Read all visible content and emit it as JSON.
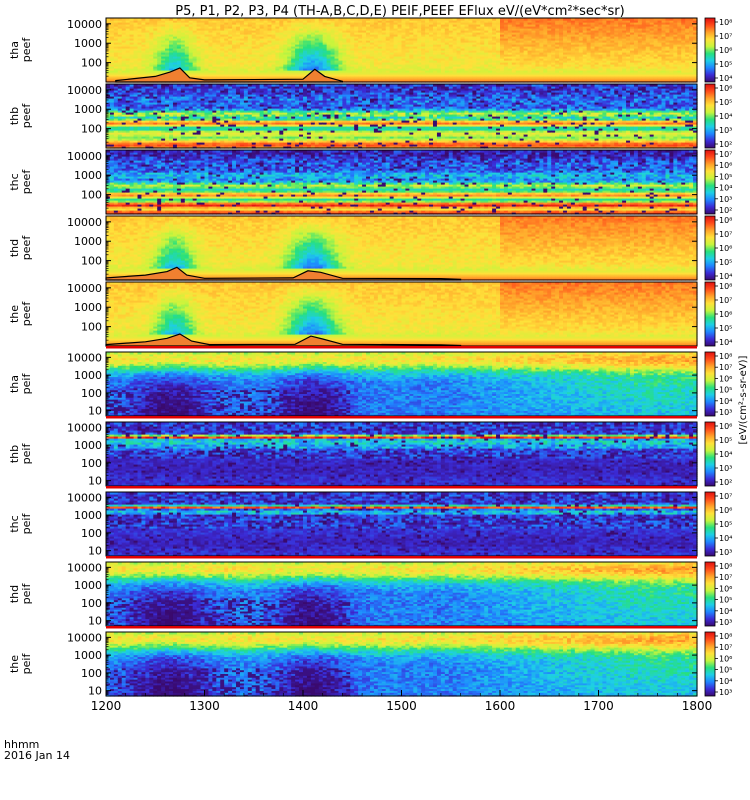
{
  "chart_data": {
    "type": "heatmap",
    "title": "P5, P1, P2, P3, P4 (TH-A,B,C,D,E) PEIF,PEEF EFlux eV/(eV*cm²*sec*sr)",
    "xlabel": "hhmm",
    "date_label": "2016 Jan 14",
    "x_range": [
      1200,
      1800
    ],
    "x_ticks": [
      "1200",
      "1300",
      "1400",
      "1500",
      "1600",
      "1700",
      "1800"
    ],
    "y_scale": "log",
    "colormap": [
      "#3a0a6e",
      "#3b2bd6",
      "#1f86ff",
      "#1ecfe6",
      "#28e07c",
      "#c8f53c",
      "#ffe13a",
      "#ffa12a",
      "#ff4a1a",
      "#e01010"
    ],
    "panels": [
      {
        "id": "tha-peef",
        "label": [
          "tha",
          "peef"
        ],
        "yticks": [
          "10000",
          "1000",
          "100"
        ],
        "ytick_energies": [
          10000,
          1000,
          100
        ],
        "yrange": [
          10,
          20000
        ],
        "cbar_ticks": [
          "10⁸",
          "10⁷",
          "10⁶",
          "10⁵",
          "10⁴"
        ],
        "style": "electron",
        "hot_low": 0.6,
        "overlay": [
          {
            "t": 1210,
            "v": 0.1
          },
          {
            "t": 1250,
            "v": 0.4
          },
          {
            "t": 1265,
            "v": 0.7
          },
          {
            "t": 1275,
            "v": 1.0
          },
          {
            "t": 1285,
            "v": 0.3
          },
          {
            "t": 1300,
            "v": 0.15
          },
          {
            "t": 1400,
            "v": 0.2
          },
          {
            "t": 1412,
            "v": 0.9
          },
          {
            "t": 1422,
            "v": 0.4
          },
          {
            "t": 1440,
            "v": 0.05
          }
        ]
      },
      {
        "id": "thb-peef",
        "label": [
          "thb",
          "peef"
        ],
        "yticks": [
          "10000",
          "1000",
          "100"
        ],
        "ytick_energies": [
          10000,
          1000,
          100
        ],
        "yrange": [
          10,
          20000
        ],
        "cbar_ticks": [
          "10⁶",
          "10⁵",
          "10⁴",
          "10³",
          "10²"
        ],
        "style": "bands",
        "bands": [
          {
            "e": 15000,
            "w": 0.55,
            "c": 0.12
          },
          {
            "e": 3000,
            "w": 0.45,
            "c": 0.2
          },
          {
            "e": 600,
            "w": 0.3,
            "c": 0.55
          },
          {
            "e": 200,
            "w": 0.3,
            "c": 0.82
          },
          {
            "e": 60,
            "w": 0.35,
            "c": 0.6
          },
          {
            "e": 15,
            "w": 0.5,
            "c": 0.88
          }
        ],
        "overlay": []
      },
      {
        "id": "thc-peef",
        "label": [
          "thc",
          "peef"
        ],
        "yticks": [
          "10000",
          "1000",
          "100"
        ],
        "ytick_energies": [
          10000,
          1000,
          100
        ],
        "yrange": [
          10,
          20000
        ],
        "cbar_ticks": [
          "10⁷",
          "10⁶",
          "10⁵",
          "10⁴",
          "10³",
          "10²"
        ],
        "style": "bands",
        "bands": [
          {
            "e": 15000,
            "w": 0.5,
            "c": 0.08
          },
          {
            "e": 4000,
            "w": 0.4,
            "c": 0.18
          },
          {
            "e": 1000,
            "w": 0.35,
            "c": 0.3
          },
          {
            "e": 300,
            "w": 0.3,
            "c": 0.55
          },
          {
            "e": 100,
            "w": 0.3,
            "c": 0.8
          },
          {
            "e": 30,
            "w": 0.3,
            "c": 0.95
          },
          {
            "e": 12,
            "w": 0.3,
            "c": 0.92
          }
        ],
        "overlay": []
      },
      {
        "id": "thd-peef",
        "label": [
          "thd",
          "peef"
        ],
        "yticks": [
          "10000",
          "1000",
          "100"
        ],
        "ytick_energies": [
          10000,
          1000,
          100
        ],
        "yrange": [
          10,
          20000
        ],
        "cbar_ticks": [
          "10⁸",
          "10⁷",
          "10⁶",
          "10⁵",
          "10⁴"
        ],
        "style": "electron",
        "hot_low": 0.75,
        "overlay": [
          {
            "t": 1200,
            "v": 0.15
          },
          {
            "t": 1240,
            "v": 0.35
          },
          {
            "t": 1262,
            "v": 0.6
          },
          {
            "t": 1272,
            "v": 0.9
          },
          {
            "t": 1282,
            "v": 0.35
          },
          {
            "t": 1300,
            "v": 0.12
          },
          {
            "t": 1390,
            "v": 0.15
          },
          {
            "t": 1405,
            "v": 0.65
          },
          {
            "t": 1418,
            "v": 0.55
          },
          {
            "t": 1440,
            "v": 0.12
          },
          {
            "t": 1540,
            "v": 0.1
          },
          {
            "t": 1560,
            "v": 0.05
          }
        ]
      },
      {
        "id": "the-peef",
        "label": [
          "the",
          "peef"
        ],
        "yticks": [
          "10000",
          "1000",
          "100"
        ],
        "ytick_energies": [
          10000,
          1000,
          100
        ],
        "yrange": [
          10,
          20000
        ],
        "cbar_ticks": [
          "10⁸",
          "10⁷",
          "10⁶",
          "10⁵",
          "10⁴"
        ],
        "style": "electron",
        "hot_low": 0.75,
        "overlay": [
          {
            "t": 1200,
            "v": 0.1
          },
          {
            "t": 1240,
            "v": 0.3
          },
          {
            "t": 1262,
            "v": 0.55
          },
          {
            "t": 1275,
            "v": 0.85
          },
          {
            "t": 1287,
            "v": 0.35
          },
          {
            "t": 1305,
            "v": 0.1
          },
          {
            "t": 1392,
            "v": 0.12
          },
          {
            "t": 1408,
            "v": 0.7
          },
          {
            "t": 1420,
            "v": 0.5
          },
          {
            "t": 1440,
            "v": 0.12
          },
          {
            "t": 1540,
            "v": 0.08
          },
          {
            "t": 1560,
            "v": 0.04
          }
        ]
      },
      {
        "id": "tha-peif",
        "label": [
          "tha",
          "peif"
        ],
        "yticks": [
          "10000",
          "1000",
          "100",
          "10"
        ],
        "ytick_energies": [
          10000,
          1000,
          100,
          10
        ],
        "yrange": [
          5,
          20000
        ],
        "cbar_ticks": [
          "10⁸",
          "10⁷",
          "10⁶",
          "10⁵",
          "10⁴",
          "10³"
        ],
        "style": "ion",
        "overlay": []
      },
      {
        "id": "thb-peif",
        "label": [
          "thb",
          "peif"
        ],
        "yticks": [
          "10000",
          "1000",
          "100",
          "10"
        ],
        "ytick_energies": [
          10000,
          1000,
          100,
          10
        ],
        "yrange": [
          5,
          20000
        ],
        "cbar_ticks": [
          "10⁶",
          "10⁵",
          "10⁴",
          "10³",
          "10²"
        ],
        "style": "bands",
        "bands": [
          {
            "e": 3000,
            "w": 0.15,
            "c": 0.95
          },
          {
            "e": 1500,
            "w": 0.1,
            "c": 0.55
          },
          {
            "e": 900,
            "w": 0.2,
            "c": 0.3
          },
          {
            "e": 50,
            "w": 0.8,
            "c": 0.08
          }
        ],
        "overlay": []
      },
      {
        "id": "thc-peif",
        "label": [
          "thc",
          "peif"
        ],
        "yticks": [
          "10000",
          "1000",
          "100",
          "10"
        ],
        "ytick_energies": [
          10000,
          1000,
          100,
          10
        ],
        "yrange": [
          5,
          20000
        ],
        "cbar_ticks": [
          "10⁷",
          "10⁶",
          "10⁵",
          "10⁴",
          "10³"
        ],
        "style": "bands",
        "bands": [
          {
            "e": 3000,
            "w": 0.12,
            "c": 0.95
          },
          {
            "e": 1500,
            "w": 0.1,
            "c": 0.5
          },
          {
            "e": 400,
            "w": 0.5,
            "c": 0.12
          },
          {
            "e": 30,
            "w": 0.6,
            "c": 0.08
          }
        ],
        "overlay": []
      },
      {
        "id": "thd-peif",
        "label": [
          "thd",
          "peif"
        ],
        "yticks": [
          "10000",
          "1000",
          "100",
          "10"
        ],
        "ytick_energies": [
          10000,
          1000,
          100,
          10
        ],
        "yrange": [
          5,
          20000
        ],
        "cbar_ticks": [
          "10⁸",
          "10⁷",
          "10⁶",
          "10⁵",
          "10⁴",
          "10³"
        ],
        "style": "ion",
        "overlay": []
      },
      {
        "id": "the-peif",
        "label": [
          "the",
          "peif"
        ],
        "yticks": [
          "10000",
          "1000",
          "100",
          "10"
        ],
        "ytick_energies": [
          10000,
          1000,
          100,
          10
        ],
        "yrange": [
          5,
          20000
        ],
        "cbar_ticks": [
          "10⁸",
          "10⁷",
          "10⁶",
          "10⁵",
          "10⁴",
          "10³"
        ],
        "style": "ion",
        "overlay": []
      }
    ],
    "colorbar_title": "[eV/(cm²-s-sr-eV)]",
    "ion_colorbar_label": "eV/(cm²-s-sr-eV)",
    "electron_colorbar_label": "eV/(cm²-s-sr-eV)"
  }
}
